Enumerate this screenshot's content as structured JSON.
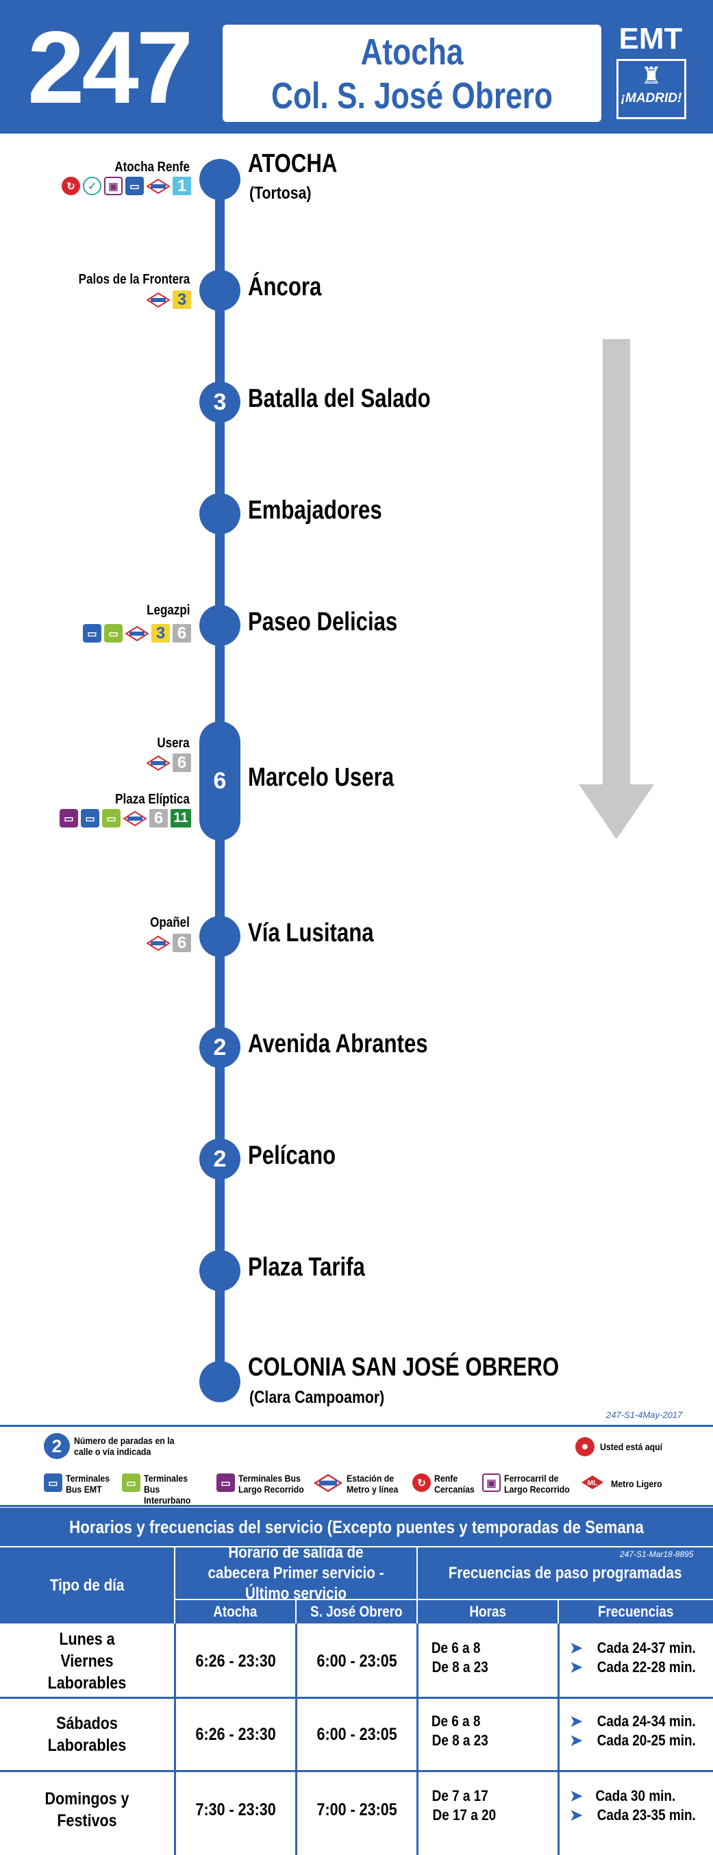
{
  "header": {
    "route_number": "247",
    "destination_line1": "Atocha",
    "destination_line2": "Col. S. José Obrero",
    "operator": "EMT",
    "city_logo_text": "¡MADRID!"
  },
  "colors": {
    "brand_blue": "#2f63b3",
    "arrow_gray": "#c8c8c8",
    "here_red": "#d8262d"
  },
  "stops": [
    {
      "name": "ATOCHA",
      "sub": "(Tortosa)",
      "station": "Atocha Renfe",
      "connections": [
        "cercanias",
        "check",
        "tren-largo",
        "bus-emt",
        "metro",
        "line-1"
      ]
    },
    {
      "name": "Áncora",
      "station": "Palos de la Frontera",
      "connections": [
        "metro",
        "line-3"
      ]
    },
    {
      "name": "Batalla del Salado",
      "stop_count": "3"
    },
    {
      "name": "Embajadores"
    },
    {
      "name": "Paseo Delicias",
      "station": "Legazpi",
      "connections": [
        "bus-emt",
        "bus-interurbano",
        "metro",
        "line-3",
        "line-6"
      ]
    },
    {
      "name": "Marcelo Usera",
      "stop_count": "6",
      "station": "Usera",
      "connections": [
        "metro",
        "line-6"
      ],
      "station2": "Plaza Elíptica",
      "connections2": [
        "bus-largo",
        "bus-emt",
        "bus-interurbano",
        "metro",
        "line-6",
        "line-11"
      ]
    },
    {
      "name": "Vía Lusitana",
      "station": "Opañel",
      "connections": [
        "metro",
        "line-6"
      ]
    },
    {
      "name": "Avenida Abrantes",
      "stop_count": "2"
    },
    {
      "name": "Pelícano",
      "stop_count": "2"
    },
    {
      "name": "Plaza Tarifa"
    },
    {
      "name": "COLONIA SAN JOSÉ OBRERO",
      "sub": "(Clara Campoamor)"
    }
  ],
  "line_labels": {
    "l1": "1",
    "l3": "3",
    "l6": "6",
    "l11": "11"
  },
  "route_code": "247-S1-4May-2017",
  "legend": {
    "stop_count_example": "2",
    "stop_count_text": "Número de paradas en la calle o vía indicada",
    "you_are_here": "Usted está aquí",
    "items": [
      {
        "icon": "bus-emt-icon",
        "label": "Terminales Bus EMT"
      },
      {
        "icon": "bus-interurbano-icon",
        "label": "Terminales Bus Interurbano"
      },
      {
        "icon": "bus-largo-recorrido-icon",
        "label": "Terminales Bus Largo Recorrido"
      },
      {
        "icon": "metro-icon",
        "label": "Estación de Metro y línea"
      },
      {
        "icon": "cercanias-icon",
        "label": "Renfe Cercanías"
      },
      {
        "icon": "ferrocarril-icon",
        "label": "Ferrocarril de Largo Recorrido"
      },
      {
        "icon": "metro-ligero-icon",
        "label": "Metro Ligero"
      }
    ]
  },
  "schedule": {
    "title": "Horarios y frecuencias del servicio (Excepto puentes y temporadas de Semana Santa y Verano)",
    "code": "247-S1-Mar18-8895",
    "col_day_type": "Tipo de día",
    "col_departure": "Horario de salida de cabecera Primer servicio - Último servicio",
    "col_frequencies": "Frecuencias de paso programadas",
    "sub_atocha": "Atocha",
    "sub_obrero": "S. José Obrero",
    "sub_hours": "Horas",
    "sub_freq": "Frecuencias",
    "rows": [
      {
        "day": "Lunes a Viernes Laborables",
        "atocha": "6:26 - 23:30",
        "obrero": "6:00 - 23:05",
        "hours1": "De 6 a 8",
        "hours2": "De 8 a 23",
        "freq1": "Cada 24-37 min.",
        "freq2": "Cada 22-28 min."
      },
      {
        "day": "Sábados Laborables",
        "atocha": "6:26 - 23:30",
        "obrero": "6:00 - 23:05",
        "hours1": "De 6 a 8",
        "hours2": "De 8 a 23",
        "freq1": "Cada 24-34 min.",
        "freq2": "Cada 20-25 min."
      },
      {
        "day": "Domingos y Festivos",
        "atocha": "7:30 - 23:30",
        "obrero": "7:00 - 23:05",
        "hours1": "De 7 a 17",
        "hours2": "De 17 a 20",
        "freq1": "Cada 30 min.",
        "freq2": "Cada 23-35 min."
      }
    ]
  }
}
